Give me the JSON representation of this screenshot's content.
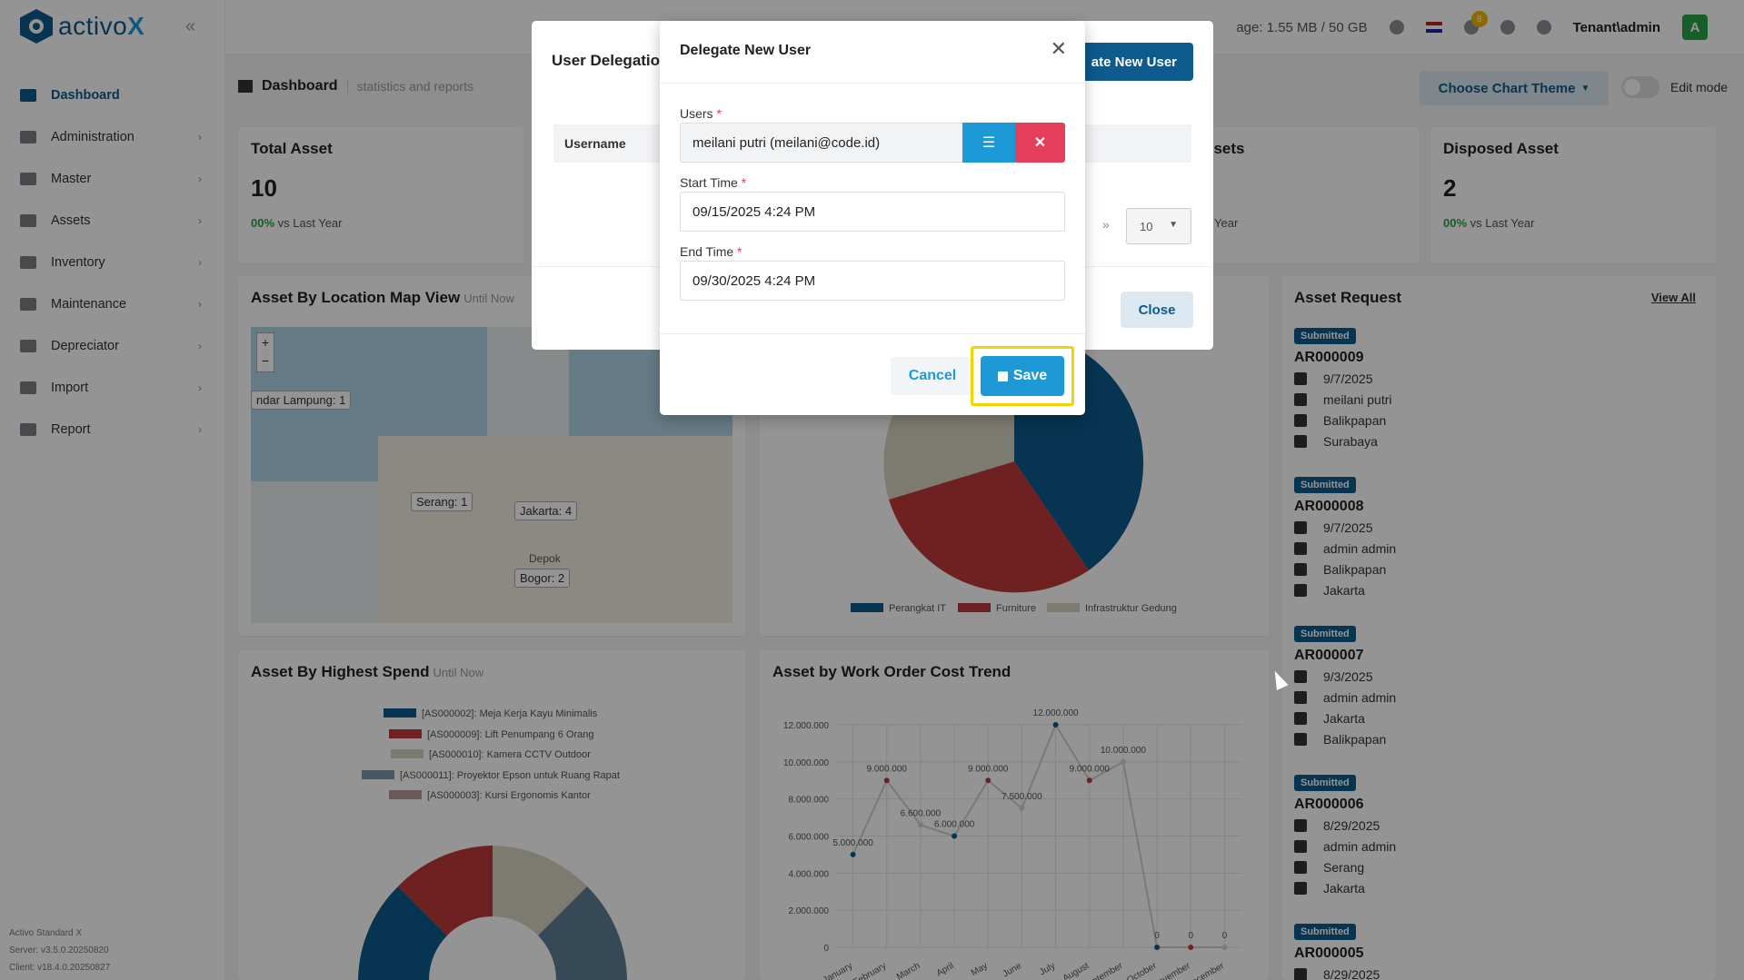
{
  "app": {
    "logo_prefix": "activo",
    "logo_suffix": "X"
  },
  "sidebar": {
    "items": [
      {
        "label": "Dashboard",
        "active": true
      },
      {
        "label": "Administration"
      },
      {
        "label": "Master"
      },
      {
        "label": "Assets"
      },
      {
        "label": "Inventory"
      },
      {
        "label": "Maintenance"
      },
      {
        "label": "Depreciator"
      },
      {
        "label": "Import"
      },
      {
        "label": "Report"
      }
    ],
    "version": {
      "edition": "Activo Standard X",
      "server": "Server: v3.5.0.20250820",
      "client": "Client: v18.4.0.20250827"
    }
  },
  "topbar": {
    "storage": "age: 1.55 MB / 50 GB",
    "notif_count": "8",
    "tenant": "Tenant\\admin",
    "avatar": "A"
  },
  "page": {
    "title": "Dashboard",
    "subtitle": "statistics and reports",
    "theme_button": "Choose Chart Theme",
    "edit_mode": "Edit mode"
  },
  "stats": {
    "total_asset": {
      "title": "Total Asset",
      "value": "10",
      "pct": "00%",
      "sub": "vs Last Year"
    },
    "disposed": {
      "title": "Disposed Asset",
      "value": "2",
      "pct": "00%",
      "sub": "vs Last Year"
    },
    "partial_title": "ssets",
    "partial_sub": "Year"
  },
  "map": {
    "title": "Asset By Location Map View",
    "sub": "Until Now",
    "labels": [
      "ndar Lampung: 1",
      "Serang: 1",
      "Jakarta: 4",
      "Bogor: 2",
      "Depok"
    ],
    "zoom_in": "+",
    "zoom_out": "−"
  },
  "category_chart": {
    "legend": [
      "Perangkat IT",
      "Furniture",
      "Infrastruktur Gedung"
    ]
  },
  "spend": {
    "title": "Asset By Highest Spend",
    "sub": "Until Now",
    "legend": [
      "[AS000002]: Meja Kerja Kayu Minimalis",
      "[AS000009]: Lift Penumpang 6 Orang",
      "[AS000010]: Kamera CCTV Outdoor",
      "[AS000011]: Proyektor Epson untuk Ruang Rapat",
      "[AS000003]: Kursi Ergonomis Kantor"
    ]
  },
  "trend": {
    "title": "Asset by Work Order Cost Trend"
  },
  "chart_data": {
    "type": "line",
    "title": "Asset by Work Order Cost Trend",
    "categories": [
      "January",
      "February",
      "March",
      "April",
      "May",
      "June",
      "July",
      "August",
      "September",
      "October",
      "November",
      "December"
    ],
    "values": [
      5000000,
      9000000,
      6600000,
      6000000,
      9000000,
      7500000,
      12000000,
      9000000,
      10000000,
      0,
      0,
      0
    ],
    "data_labels": [
      "5.000.000",
      "9.000.000",
      "6.600.000",
      "6.000.000",
      "9.000.000",
      "7.500.000",
      "12.000.000",
      "9.000.000",
      "10.000.000",
      "0",
      "0",
      "0"
    ],
    "yticks": [
      "0",
      "2.000.000",
      "4.000.000",
      "6.000.000",
      "8.000.000",
      "10.000.000",
      "12.000.000"
    ],
    "ylim": [
      0,
      12000000
    ],
    "grid": true,
    "colors": [
      "#0d5a8c",
      "#c0393b",
      "#d8d2c2"
    ]
  },
  "requests": {
    "title": "Asset Request",
    "view_all": "View All",
    "items": [
      {
        "status": "Submitted",
        "code": "AR000009",
        "date": "9/7/2025",
        "user": "meilani putri",
        "from": "Balikpapan",
        "to": "Surabaya"
      },
      {
        "status": "Submitted",
        "code": "AR000008",
        "date": "9/7/2025",
        "user": "admin admin",
        "from": "Balikpapan",
        "to": "Jakarta"
      },
      {
        "status": "Submitted",
        "code": "AR000007",
        "date": "9/3/2025",
        "user": "admin admin",
        "from": "Jakarta",
        "to": "Balikpapan"
      },
      {
        "status": "Submitted",
        "code": "AR000006",
        "date": "8/29/2025",
        "user": "admin admin",
        "from": "Serang",
        "to": "Jakarta"
      },
      {
        "status": "Submitted",
        "code": "AR000005",
        "date": "8/29/2025",
        "user": "",
        "from": "",
        "to": ""
      }
    ]
  },
  "bg_modal": {
    "title": "User Delegatio",
    "add_button": "ate New User",
    "col_username": "Username",
    "page_size": "10",
    "close": "Close"
  },
  "modal": {
    "title": "Delegate New User",
    "users_label": "Users",
    "users_value": "meilani putri (meilani@code.id)",
    "start_label": "Start Time",
    "start_value": "09/15/2025 4:24 PM",
    "end_label": "End Time",
    "end_value": "09/30/2025 4:24 PM",
    "required": "*",
    "cancel": "Cancel",
    "save": "Save"
  }
}
